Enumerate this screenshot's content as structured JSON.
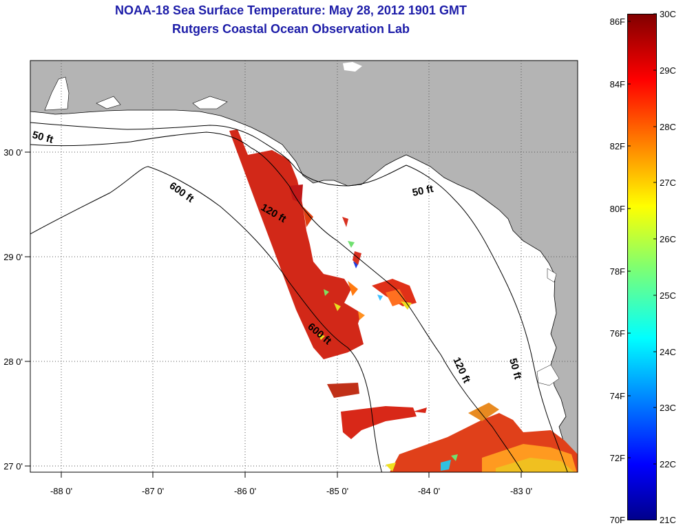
{
  "title": {
    "line1": "NOAA-18 Sea Surface Temperature:  May 28, 2012 1901 GMT",
    "line2": "Rutgers Coastal Ocean Observation Lab"
  },
  "map": {
    "x_ticks": [
      "-88 0'",
      "-87 0'",
      "-86 0'",
      "-85 0'",
      "-84 0'",
      "-83 0'"
    ],
    "y_ticks": [
      "30 0'",
      "29 0'",
      "28 0'",
      "27 0'"
    ],
    "contour_labels": [
      "50 ft",
      "600 ft",
      "120 ft",
      "50 ft",
      "600 ft",
      "120 ft",
      "50 ft"
    ],
    "colors": {
      "land": "#b4b4b4",
      "ocean": "#ffffff",
      "sst_main": "#d22818"
    }
  },
  "colorbar": {
    "fahrenheit_labels": [
      "86F",
      "84F",
      "82F",
      "80F",
      "78F",
      "76F",
      "74F",
      "72F",
      "70F"
    ],
    "celsius_labels": [
      "30C",
      "29C",
      "28C",
      "27C",
      "26C",
      "25C",
      "24C",
      "23C",
      "22C",
      "21C"
    ]
  }
}
